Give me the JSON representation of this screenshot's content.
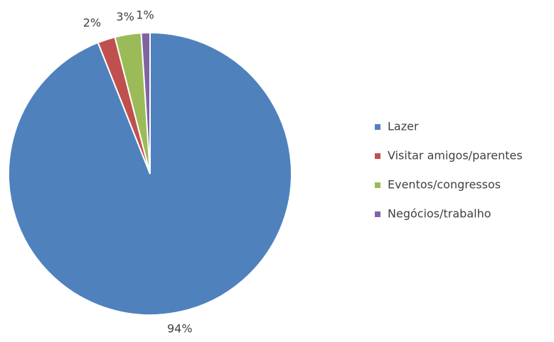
{
  "chart_data": {
    "type": "pie",
    "categories": [
      "Lazer",
      "Visitar amigos/parentes",
      "Eventos/congressos",
      "Negócios/trabalho"
    ],
    "values": [
      94,
      2,
      3,
      1
    ],
    "value_labels": [
      "94%",
      "2%",
      "3%",
      "1%"
    ],
    "colors": [
      "#4f81bd",
      "#c0504d",
      "#9bbb59",
      "#8064a2"
    ],
    "legend": "right"
  }
}
